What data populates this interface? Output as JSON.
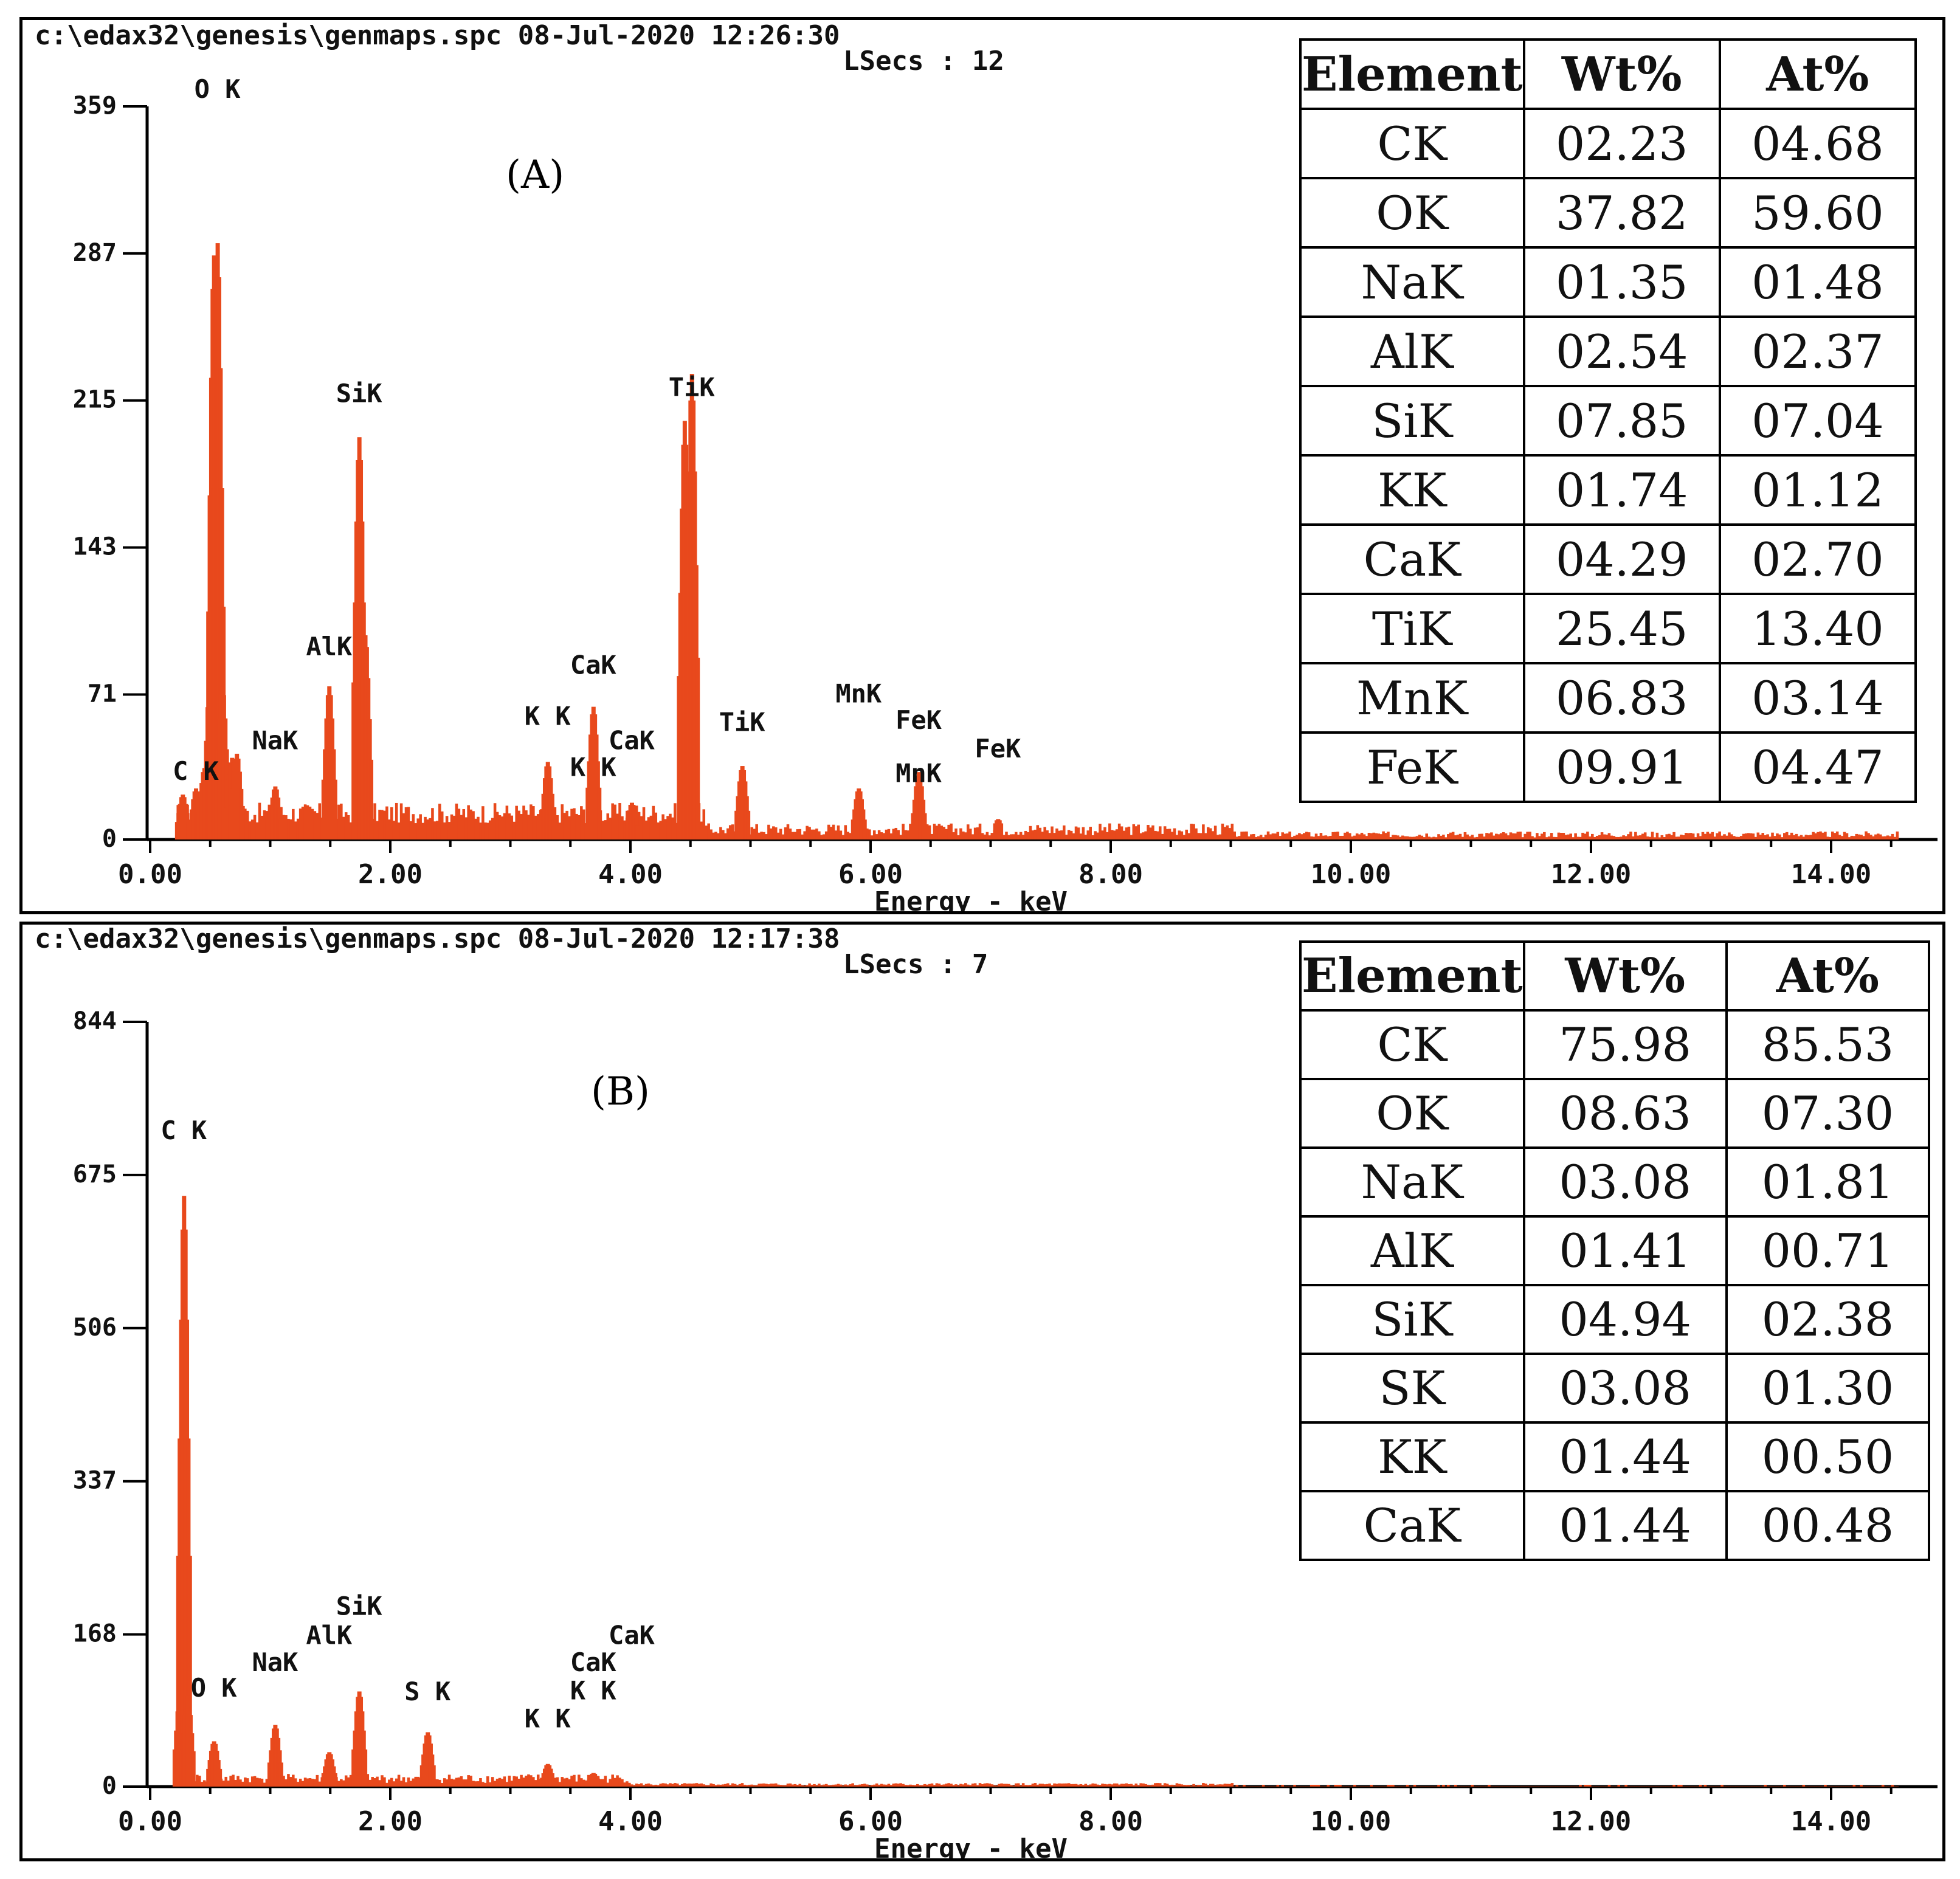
{
  "chart_data": [
    {
      "type": "bar",
      "panel_label": "(A)",
      "header_line1": "c:\\edax32\\genesis\\genmaps.spc  08-Jul-2020 12:26:30",
      "header_line2": "LSecs :  12",
      "xlabel": "Energy - keV",
      "ylabel": "",
      "xlim": [
        0,
        14.6
      ],
      "ylim": [
        0,
        359
      ],
      "x_ticks": [
        "0.00",
        "2.00",
        "4.00",
        "6.00",
        "8.00",
        "10.00",
        "12.00",
        "14.00"
      ],
      "y_ticks": [
        "0",
        "71",
        "143",
        "215",
        "287",
        "359"
      ],
      "color": "#e8491c",
      "peaks": [
        {
          "x": 0.27,
          "y": 22
        },
        {
          "x": 0.38,
          "y": 25
        },
        {
          "x": 0.45,
          "y": 35
        },
        {
          "x": 0.5,
          "y": 82
        },
        {
          "x": 0.53,
          "y": 286
        },
        {
          "x": 0.56,
          "y": 292
        },
        {
          "x": 0.6,
          "y": 75
        },
        {
          "x": 0.68,
          "y": 40
        },
        {
          "x": 0.72,
          "y": 42
        },
        {
          "x": 1.04,
          "y": 26
        },
        {
          "x": 1.49,
          "y": 75
        },
        {
          "x": 1.74,
          "y": 197
        },
        {
          "x": 1.79,
          "y": 100
        },
        {
          "x": 3.31,
          "y": 38
        },
        {
          "x": 3.69,
          "y": 65
        },
        {
          "x": 4.01,
          "y": 18
        },
        {
          "x": 4.45,
          "y": 205
        },
        {
          "x": 4.51,
          "y": 228
        },
        {
          "x": 4.93,
          "y": 36
        },
        {
          "x": 5.9,
          "y": 25
        },
        {
          "x": 6.4,
          "y": 33
        },
        {
          "x": 7.06,
          "y": 10
        }
      ],
      "peak_labels": [
        {
          "text": "O K",
          "x": 0.56,
          "y": 359
        },
        {
          "text": "SiK",
          "x": 1.74,
          "y": 210
        },
        {
          "text": "AlK",
          "x": 1.49,
          "y": 86
        },
        {
          "text": "NaK",
          "x": 1.04,
          "y": 40
        },
        {
          "text": "C K",
          "x": 0.38,
          "y": 25
        },
        {
          "text": "TiK",
          "x": 4.51,
          "y": 213
        },
        {
          "text": "CaK",
          "x": 3.69,
          "y": 77
        },
        {
          "text": "K K",
          "x": 3.31,
          "y": 52
        },
        {
          "text": "CaK",
          "x": 4.01,
          "y": 40
        },
        {
          "text": "K K",
          "x": 3.69,
          "y": 27
        },
        {
          "text": "TiK",
          "x": 4.93,
          "y": 49
        },
        {
          "text": "MnK",
          "x": 5.9,
          "y": 63
        },
        {
          "text": "FeK",
          "x": 6.4,
          "y": 50
        },
        {
          "text": "FeK",
          "x": 7.06,
          "y": 36
        },
        {
          "text": "MnK",
          "x": 6.4,
          "y": 24
        }
      ],
      "table": {
        "headers": [
          "Element",
          "Wt%",
          "At%"
        ],
        "rows": [
          [
            "CK",
            "02.23",
            "04.68"
          ],
          [
            "OK",
            "37.82",
            "59.60"
          ],
          [
            "NaK",
            "01.35",
            "01.48"
          ],
          [
            "AlK",
            "02.54",
            "02.37"
          ],
          [
            "SiK",
            "07.85",
            "07.04"
          ],
          [
            "KK",
            "01.74",
            "01.12"
          ],
          [
            "CaK",
            "04.29",
            "02.70"
          ],
          [
            "TiK",
            "25.45",
            "13.40"
          ],
          [
            "MnK",
            "06.83",
            "03.14"
          ],
          [
            "FeK",
            "09.91",
            "04.47"
          ]
        ]
      }
    },
    {
      "type": "bar",
      "panel_label": "(B)",
      "header_line1": "c:\\edax32\\genesis\\genmaps.spc  08-Jul-2020 12:17:38",
      "header_line2": "LSecs :  7",
      "xlabel": "Energy - keV",
      "ylabel": "",
      "xlim": [
        0,
        14.6
      ],
      "ylim": [
        0,
        844
      ],
      "x_ticks": [
        "0.00",
        "2.00",
        "4.00",
        "6.00",
        "8.00",
        "10.00",
        "12.00",
        "14.00"
      ],
      "y_ticks": [
        "0",
        "168",
        "337",
        "506",
        "675",
        "844"
      ],
      "color": "#e8491c",
      "peaks": [
        {
          "x": 0.25,
          "y": 105
        },
        {
          "x": 0.28,
          "y": 652
        },
        {
          "x": 0.31,
          "y": 100
        },
        {
          "x": 0.53,
          "y": 50
        },
        {
          "x": 1.04,
          "y": 68
        },
        {
          "x": 1.49,
          "y": 38
        },
        {
          "x": 1.74,
          "y": 105
        },
        {
          "x": 2.31,
          "y": 60
        },
        {
          "x": 3.31,
          "y": 25
        },
        {
          "x": 3.69,
          "y": 15
        }
      ],
      "peak_labels": [
        {
          "text": "C K",
          "x": 0.28,
          "y": 705
        },
        {
          "text": "O K",
          "x": 0.53,
          "y": 90
        },
        {
          "text": "NaK",
          "x": 1.04,
          "y": 118
        },
        {
          "text": "AlK",
          "x": 1.49,
          "y": 148
        },
        {
          "text": "SiK",
          "x": 1.74,
          "y": 180
        },
        {
          "text": "S K",
          "x": 2.31,
          "y": 86
        },
        {
          "text": "K K",
          "x": 3.31,
          "y": 56
        },
        {
          "text": "K K",
          "x": 3.69,
          "y": 87
        },
        {
          "text": "CaK",
          "x": 3.69,
          "y": 118
        },
        {
          "text": "CaK",
          "x": 4.01,
          "y": 148
        }
      ],
      "table": {
        "headers": [
          "Element",
          "Wt%",
          "At%"
        ],
        "rows": [
          [
            "CK",
            "75.98",
            "85.53"
          ],
          [
            "OK",
            "08.63",
            "07.30"
          ],
          [
            "NaK",
            "03.08",
            "01.81"
          ],
          [
            "AlK",
            "01.41",
            "00.71"
          ],
          [
            "SiK",
            "04.94",
            "02.38"
          ],
          [
            "SK",
            "03.08",
            "01.30"
          ],
          [
            "KK",
            "01.44",
            "00.50"
          ],
          [
            "CaK",
            "01.44",
            "00.48"
          ]
        ]
      }
    }
  ]
}
